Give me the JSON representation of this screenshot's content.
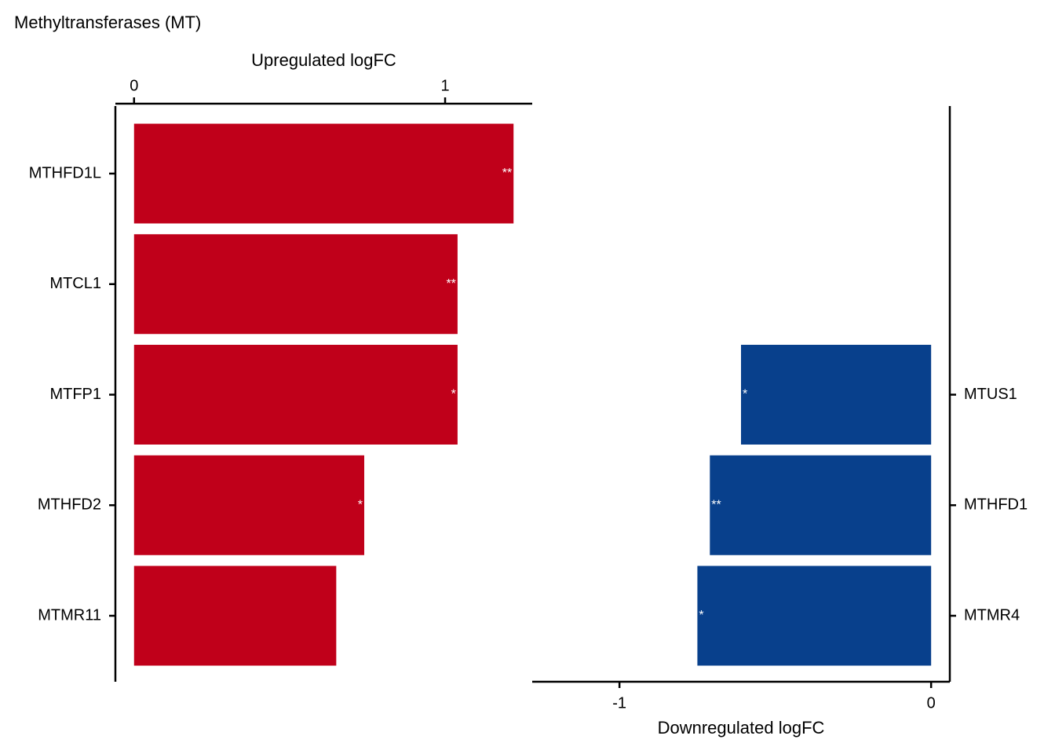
{
  "title": "Methyltransferases (MT)",
  "chart_data": [
    {
      "type": "bar",
      "x_label": "Upregulated logFC",
      "categories": [
        "MTHFD1L",
        "MTCL1",
        "MTFP1",
        "MTHFD2",
        "MTMR11"
      ],
      "values": [
        1.22,
        1.04,
        1.04,
        0.74,
        0.65
      ],
      "significance": [
        "**",
        "**",
        "*",
        "*",
        null
      ],
      "color": "#c0001a",
      "xlim": [
        -0.06,
        1.28
      ],
      "xticks": [
        0,
        1
      ],
      "x_axis_position": "top",
      "category_axis_position": "left"
    },
    {
      "type": "bar",
      "x_label": "Downregulated logFC",
      "categories": [
        "MTUS1",
        "MTHFD1",
        "MTMR4"
      ],
      "values": [
        -0.61,
        -0.71,
        -0.75
      ],
      "significance": [
        "*",
        "**",
        "*"
      ],
      "color": "#08408c",
      "xlim": [
        -1.28,
        0.06
      ],
      "xticks": [
        -1,
        0
      ],
      "x_axis_position": "bottom",
      "category_axis_position": "right"
    }
  ]
}
